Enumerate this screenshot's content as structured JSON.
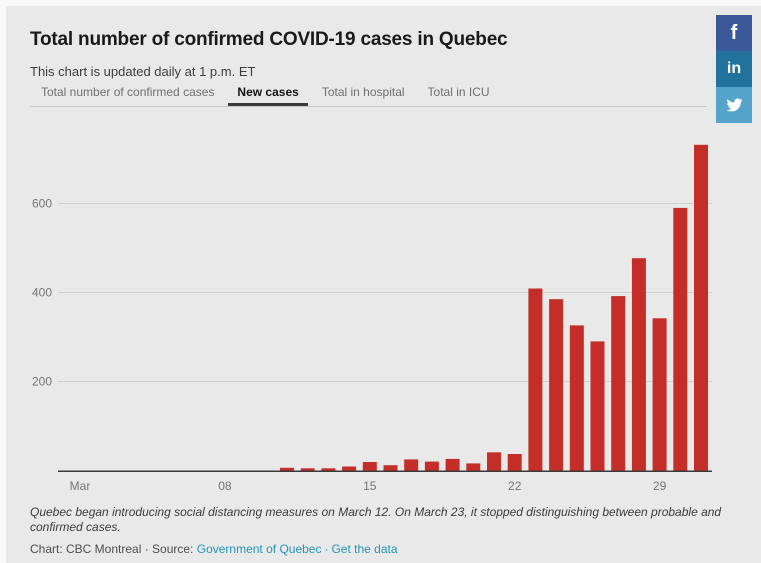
{
  "header": {
    "title": "Total number of confirmed COVID-19 cases in Quebec",
    "subtitle": "This chart is updated daily at 1 p.m. ET"
  },
  "tabs": [
    {
      "label": "Total number of confirmed cases",
      "active": false
    },
    {
      "label": "New cases",
      "active": true
    },
    {
      "label": "Total in hospital",
      "active": false
    },
    {
      "label": "Total in ICU",
      "active": false
    }
  ],
  "share_buttons": {
    "facebook": {
      "glyph": "f",
      "color": "#3b5998"
    },
    "linkedin": {
      "glyph": "in",
      "color": "#21739e"
    },
    "twitter": {
      "color": "#54a4cc"
    }
  },
  "chart_data": {
    "type": "bar",
    "title": "New cases",
    "categories": [
      "Mar 1",
      "Mar 2",
      "Mar 3",
      "Mar 4",
      "Mar 5",
      "Mar 6",
      "Mar 7",
      "Mar 8",
      "Mar 9",
      "Mar 10",
      "Mar 11",
      "Mar 12",
      "Mar 13",
      "Mar 14",
      "Mar 15",
      "Mar 16",
      "Mar 17",
      "Mar 18",
      "Mar 19",
      "Mar 20",
      "Mar 21",
      "Mar 22",
      "Mar 23",
      "Mar 24",
      "Mar 25",
      "Mar 26",
      "Mar 27",
      "Mar 28",
      "Mar 29",
      "Mar 30",
      "Mar 31"
    ],
    "values": [
      0,
      0,
      0,
      0,
      0,
      0,
      0,
      0,
      0,
      0,
      6,
      5,
      5,
      9,
      19,
      12,
      25,
      20,
      26,
      16,
      41,
      37,
      409,
      385,
      326,
      290,
      392,
      477,
      342,
      590,
      732
    ],
    "x_tick_labels": [
      "Mar",
      "08",
      "15",
      "22",
      "29"
    ],
    "x_tick_positions": [
      1,
      8,
      15,
      22,
      29
    ],
    "yticks": [
      200,
      400,
      600
    ],
    "ylim": [
      0,
      760
    ],
    "grid": true,
    "legend": "none",
    "xlabel": "",
    "ylabel": "",
    "bar_color": "#c42d28",
    "axis_color": "#3a3a3a",
    "grid_color": "#cfcfcf",
    "tick_label_color": "#757575"
  },
  "footer": {
    "note": "Quebec began introducing social distancing measures on March 12. On March 23, it stopped distinguishing between probable and confirmed cases.",
    "credit_prefix": "Chart: CBC Montreal · Source:",
    "source_link": "Government of Quebec",
    "separator": "·",
    "get_data_link": "Get the data",
    "link_color": "#2496b6"
  }
}
